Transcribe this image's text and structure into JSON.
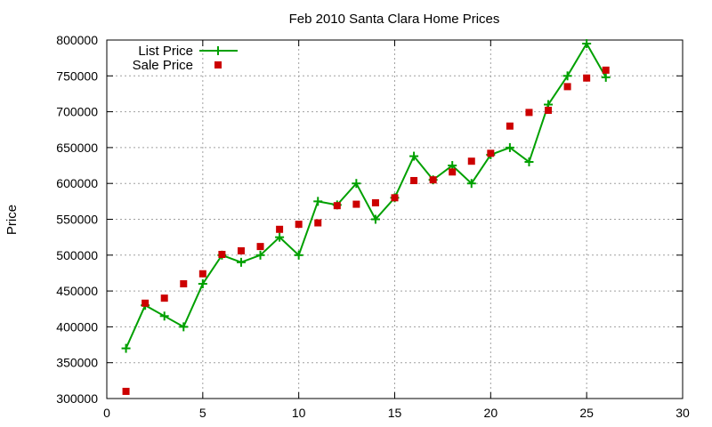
{
  "chart_data": {
    "type": "line",
    "title": "Feb 2010 Santa Clara Home Prices",
    "xlabel": "",
    "ylabel": "Price",
    "xlim": [
      0,
      30
    ],
    "ylim": [
      300000,
      800000
    ],
    "xticks": [
      0,
      5,
      10,
      15,
      20,
      25,
      30
    ],
    "yticks": [
      300000,
      350000,
      400000,
      450000,
      500000,
      550000,
      600000,
      650000,
      700000,
      750000,
      800000
    ],
    "grid": true,
    "legend_position": "top-left",
    "series": [
      {
        "name": "List Price",
        "style": "line+plus",
        "color": "#00a000",
        "x": [
          1,
          2,
          3,
          4,
          5,
          6,
          7,
          8,
          9,
          10,
          11,
          12,
          13,
          14,
          15,
          16,
          17,
          18,
          19,
          20,
          21,
          22,
          23,
          24,
          25,
          26
        ],
        "y": [
          370000,
          430000,
          415000,
          400000,
          460000,
          500000,
          490000,
          500000,
          525000,
          500000,
          575000,
          570000,
          600000,
          550000,
          580000,
          638000,
          605000,
          625000,
          600000,
          640000,
          650000,
          630000,
          710000,
          750000,
          795000,
          748000
        ]
      },
      {
        "name": "Sale Price",
        "style": "square",
        "color": "#cc0000",
        "x": [
          1,
          2,
          3,
          4,
          5,
          6,
          7,
          8,
          9,
          10,
          11,
          12,
          13,
          14,
          15,
          16,
          17,
          18,
          19,
          20,
          21,
          22,
          23,
          24,
          25,
          26
        ],
        "y": [
          310000,
          433000,
          440000,
          460000,
          474000,
          501000,
          506000,
          512000,
          536000,
          543000,
          545000,
          569000,
          571000,
          573000,
          580000,
          604000,
          605000,
          616000,
          631000,
          642000,
          680000,
          699000,
          702000,
          735000,
          747000,
          758000
        ]
      }
    ]
  }
}
